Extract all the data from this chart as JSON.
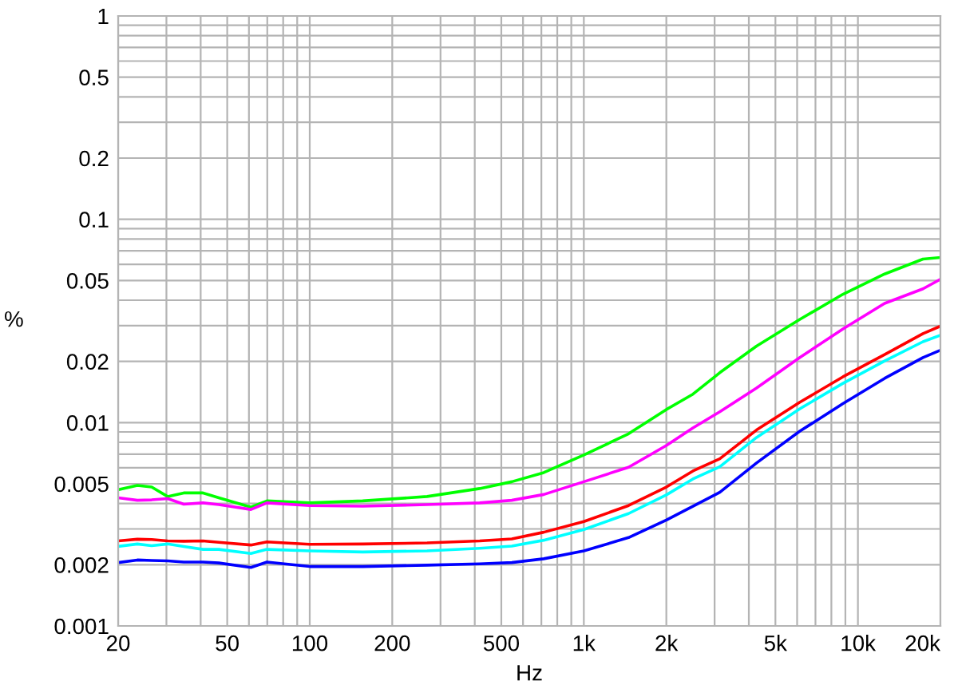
{
  "chart_data": {
    "type": "line",
    "xlabel": "Hz",
    "ylabel": "%",
    "log": "xy",
    "grid": true,
    "legend": false,
    "marker": "none",
    "line_style": "solid",
    "x": [
      20,
      23.5,
      26.5,
      30.3,
      34.7,
      40.8,
      46.6,
      61,
      69.8,
      100,
      156,
      268,
      417,
      546,
      714,
      1000,
      1456,
      2000,
      2500,
      3133,
      4267,
      6140,
      8820,
      12510,
      17270,
      20000
    ],
    "series": [
      {
        "color": "#00ff00",
        "values": [
          0.00468,
          0.00491,
          0.00482,
          0.00433,
          0.00451,
          0.00451,
          0.00427,
          0.00384,
          0.00412,
          0.00403,
          0.00412,
          0.00433,
          0.00474,
          0.00512,
          0.00568,
          0.00693,
          0.00881,
          0.0116,
          0.0138,
          0.0176,
          0.0238,
          0.0322,
          0.0428,
          0.0538,
          0.0637,
          0.0649
        ]
      },
      {
        "color": "#ff00ff",
        "values": [
          0.00427,
          0.00415,
          0.00417,
          0.00423,
          0.00397,
          0.00403,
          0.00395,
          0.00374,
          0.00403,
          0.00391,
          0.00388,
          0.00395,
          0.00403,
          0.00415,
          0.00443,
          0.00512,
          0.00603,
          0.00772,
          0.00942,
          0.0113,
          0.0148,
          0.0209,
          0.0289,
          0.0386,
          0.0455,
          0.0507
        ]
      },
      {
        "color": "#ff0000",
        "values": [
          0.00262,
          0.00267,
          0.00266,
          0.00262,
          0.00261,
          0.00262,
          0.00258,
          0.0025,
          0.00259,
          0.00252,
          0.00253,
          0.00256,
          0.00262,
          0.00268,
          0.00289,
          0.00326,
          0.00391,
          0.00482,
          0.00578,
          0.00664,
          0.0092,
          0.0126,
          0.0168,
          0.0216,
          0.0274,
          0.0298
        ]
      },
      {
        "color": "#00ffff",
        "values": [
          0.00246,
          0.00253,
          0.00248,
          0.00253,
          0.00246,
          0.00238,
          0.00238,
          0.00227,
          0.00238,
          0.00234,
          0.00231,
          0.00234,
          0.00241,
          0.00247,
          0.00264,
          0.00298,
          0.00357,
          0.00441,
          0.00528,
          0.00607,
          0.00845,
          0.0117,
          0.0156,
          0.0201,
          0.025,
          0.0269
        ]
      },
      {
        "color": "#0000ff",
        "values": [
          0.00205,
          0.00211,
          0.0021,
          0.00209,
          0.00206,
          0.00206,
          0.00204,
          0.00194,
          0.00206,
          0.00196,
          0.00196,
          0.00199,
          0.00202,
          0.00205,
          0.00214,
          0.00234,
          0.00272,
          0.00332,
          0.00388,
          0.00454,
          0.00633,
          0.00908,
          0.0124,
          0.0165,
          0.0209,
          0.0227
        ]
      }
    ],
    "xlim": [
      20,
      20000
    ],
    "ylim": [
      0.001,
      1
    ],
    "xticks": [
      20,
      50,
      100,
      200,
      500,
      {
        "value": 1000,
        "label": "1k"
      },
      {
        "value": 2000,
        "label": "2k"
      },
      {
        "value": 5000,
        "label": "5k"
      },
      {
        "value": 10000,
        "label": "10k"
      },
      {
        "value": 20000,
        "label": "20k"
      }
    ],
    "yticks": [
      0.001,
      0.002,
      0.005,
      0.01,
      0.02,
      0.05,
      0.1,
      0.2,
      0.5,
      1
    ]
  }
}
